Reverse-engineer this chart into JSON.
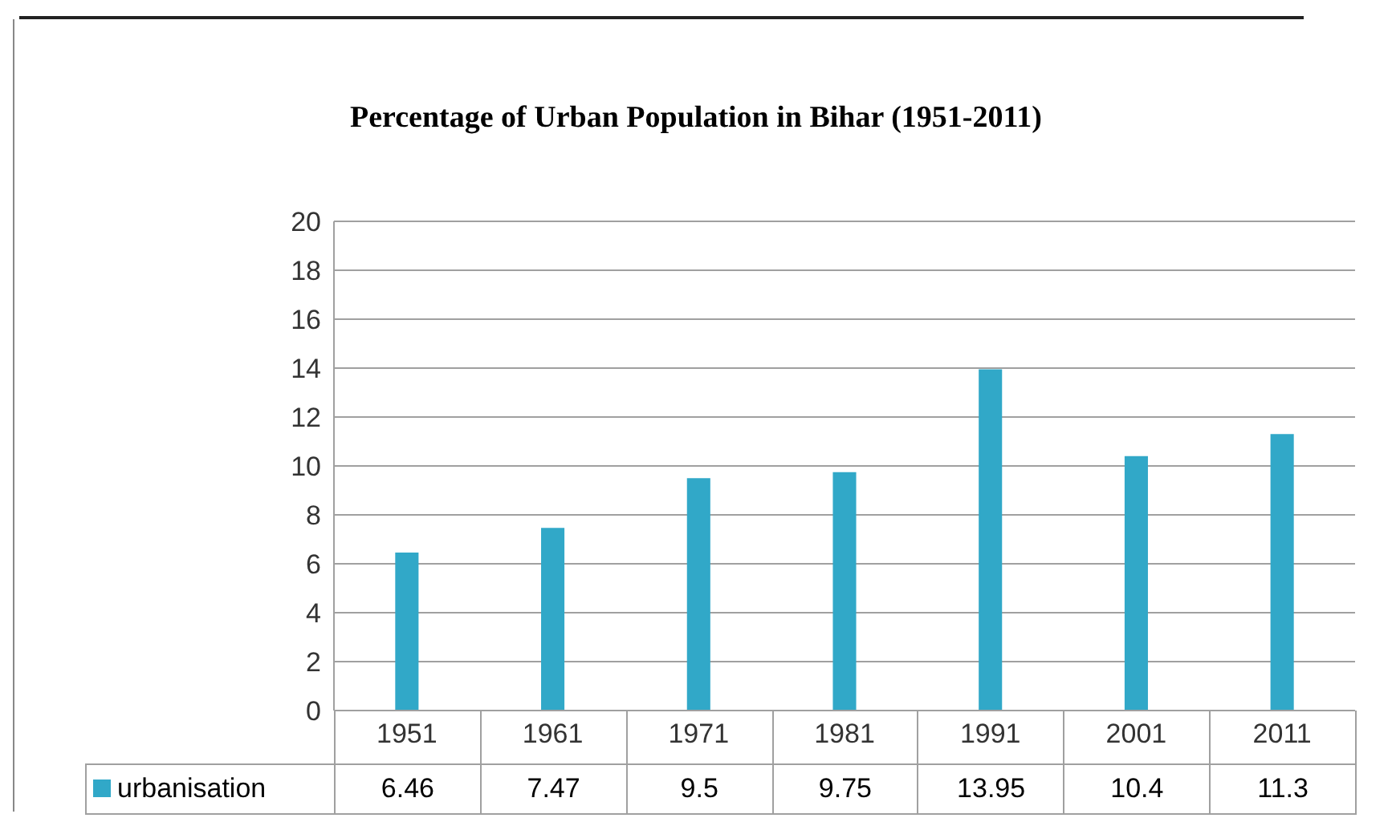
{
  "chart_data": {
    "type": "bar",
    "title": "Percentage of Urban Population in Bihar (1951-2011)",
    "categories": [
      "1951",
      "1961",
      "1971",
      "1981",
      "1991",
      "2001",
      "2011"
    ],
    "series": [
      {
        "name": "urbanisation",
        "color": "#31a8c8",
        "values": [
          6.46,
          7.47,
          9.5,
          9.75,
          13.95,
          10.4,
          11.3
        ]
      }
    ],
    "ylim": [
      0,
      20
    ],
    "yticks": [
      0,
      2,
      4,
      6,
      8,
      10,
      12,
      14,
      16,
      18,
      20
    ],
    "grid": "y",
    "legend": "bottom left",
    "data_labels": true
  }
}
